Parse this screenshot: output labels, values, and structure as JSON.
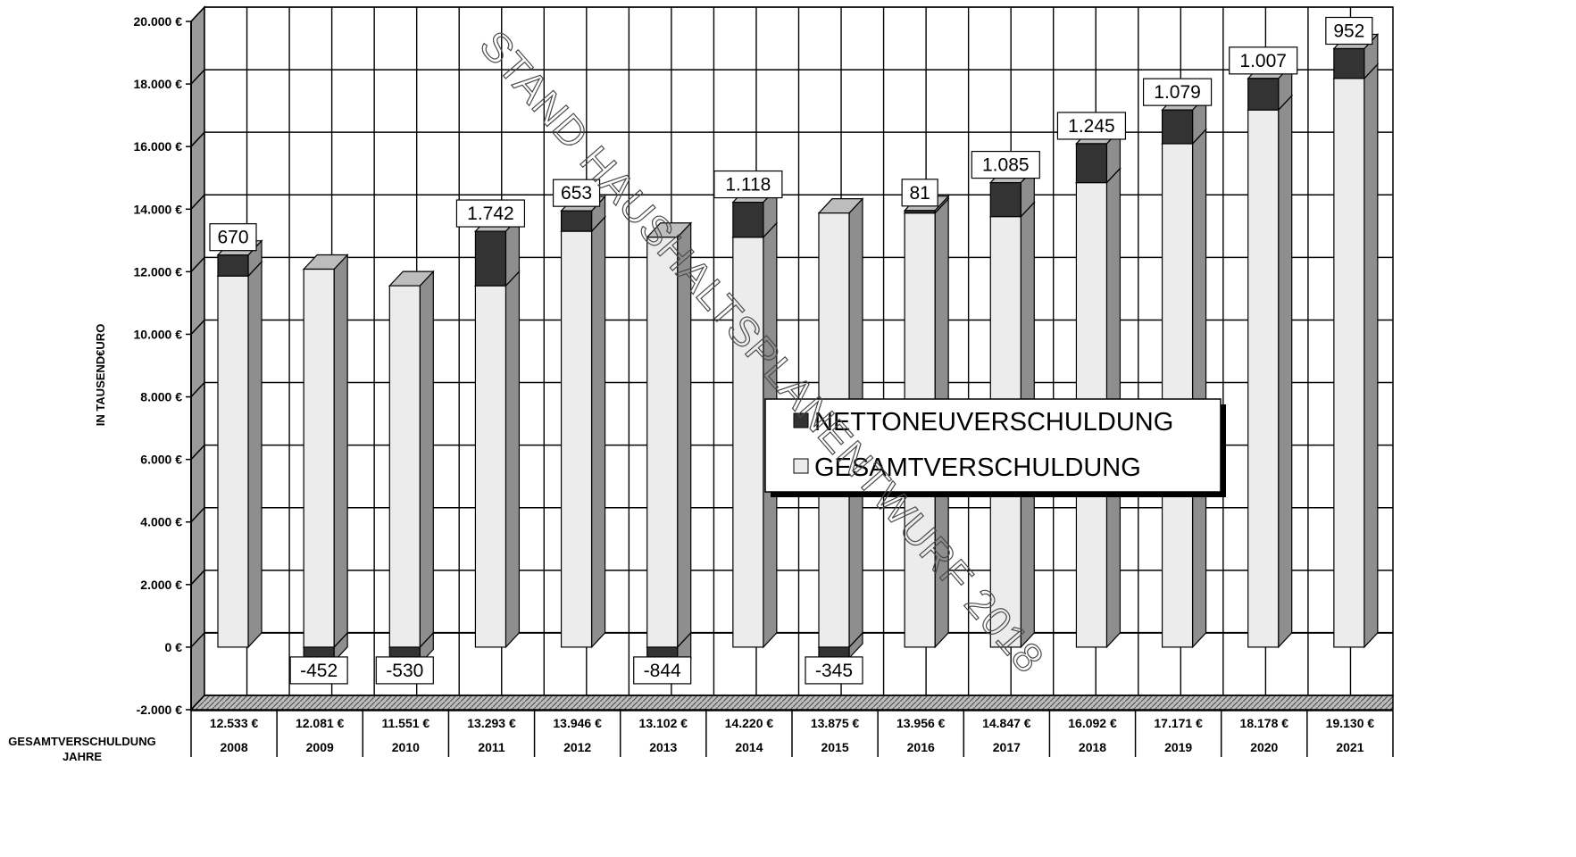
{
  "chart_data": {
    "type": "bar",
    "stacked": true,
    "three_d": true,
    "categories": [
      "2008",
      "2009",
      "2010",
      "2011",
      "2012",
      "2013",
      "2014",
      "2015",
      "2016",
      "2017",
      "2018",
      "2019",
      "2020",
      "2021"
    ],
    "series": [
      {
        "name": "NETTONEUVERSCHULDUNG",
        "color": "#333333",
        "values": [
          670,
          -452,
          -530,
          1742,
          653,
          -844,
          1118,
          -345,
          81,
          1085,
          1245,
          1079,
          1007,
          952
        ],
        "labels": [
          "670",
          "-452",
          "-530",
          "1.742",
          "653",
          "-844",
          "1.118",
          "-345",
          "81",
          "1.085",
          "1.245",
          "1.079",
          "1.007",
          "952"
        ]
      },
      {
        "name": "GESAMTVERSCHULDUNG",
        "color": "#ececec",
        "values": [
          12533,
          12081,
          11551,
          13293,
          13946,
          13102,
          14220,
          13875,
          13956,
          14847,
          16092,
          17171,
          18178,
          19130
        ]
      }
    ],
    "table": {
      "row_label": "GESAMTVERSCHULDUNG",
      "column_label": "JAHRE",
      "values": [
        "12.533 €",
        "12.081 €",
        "11.551 €",
        "13.293 €",
        "13.946 €",
        "13.102 €",
        "14.220 €",
        "13.875 €",
        "13.956 €",
        "14.847 €",
        "16.092 €",
        "17.171 €",
        "18.178 €",
        "19.130 €"
      ]
    },
    "ylabel": "IN TAUSEND€URO",
    "ylim": [
      -2000,
      20000
    ],
    "yticks": [
      -2000,
      0,
      2000,
      4000,
      6000,
      8000,
      10000,
      12000,
      14000,
      16000,
      18000,
      20000
    ],
    "ytick_labels": [
      "-2.000 €",
      "0 €",
      "2.000 €",
      "4.000 €",
      "6.000 €",
      "8.000 €",
      "10.000 €",
      "12.000 €",
      "14.000 €",
      "16.000 €",
      "18.000 €",
      "20.000 €"
    ],
    "grid": true,
    "legend_position": "center-right",
    "watermark": "STAND HAUSHALTSPLANENTWURF 2018"
  }
}
